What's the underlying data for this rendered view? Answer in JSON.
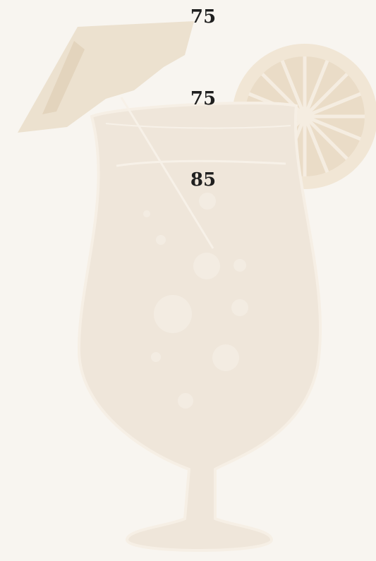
{
  "prices": [
    75,
    75,
    85
  ]
}
